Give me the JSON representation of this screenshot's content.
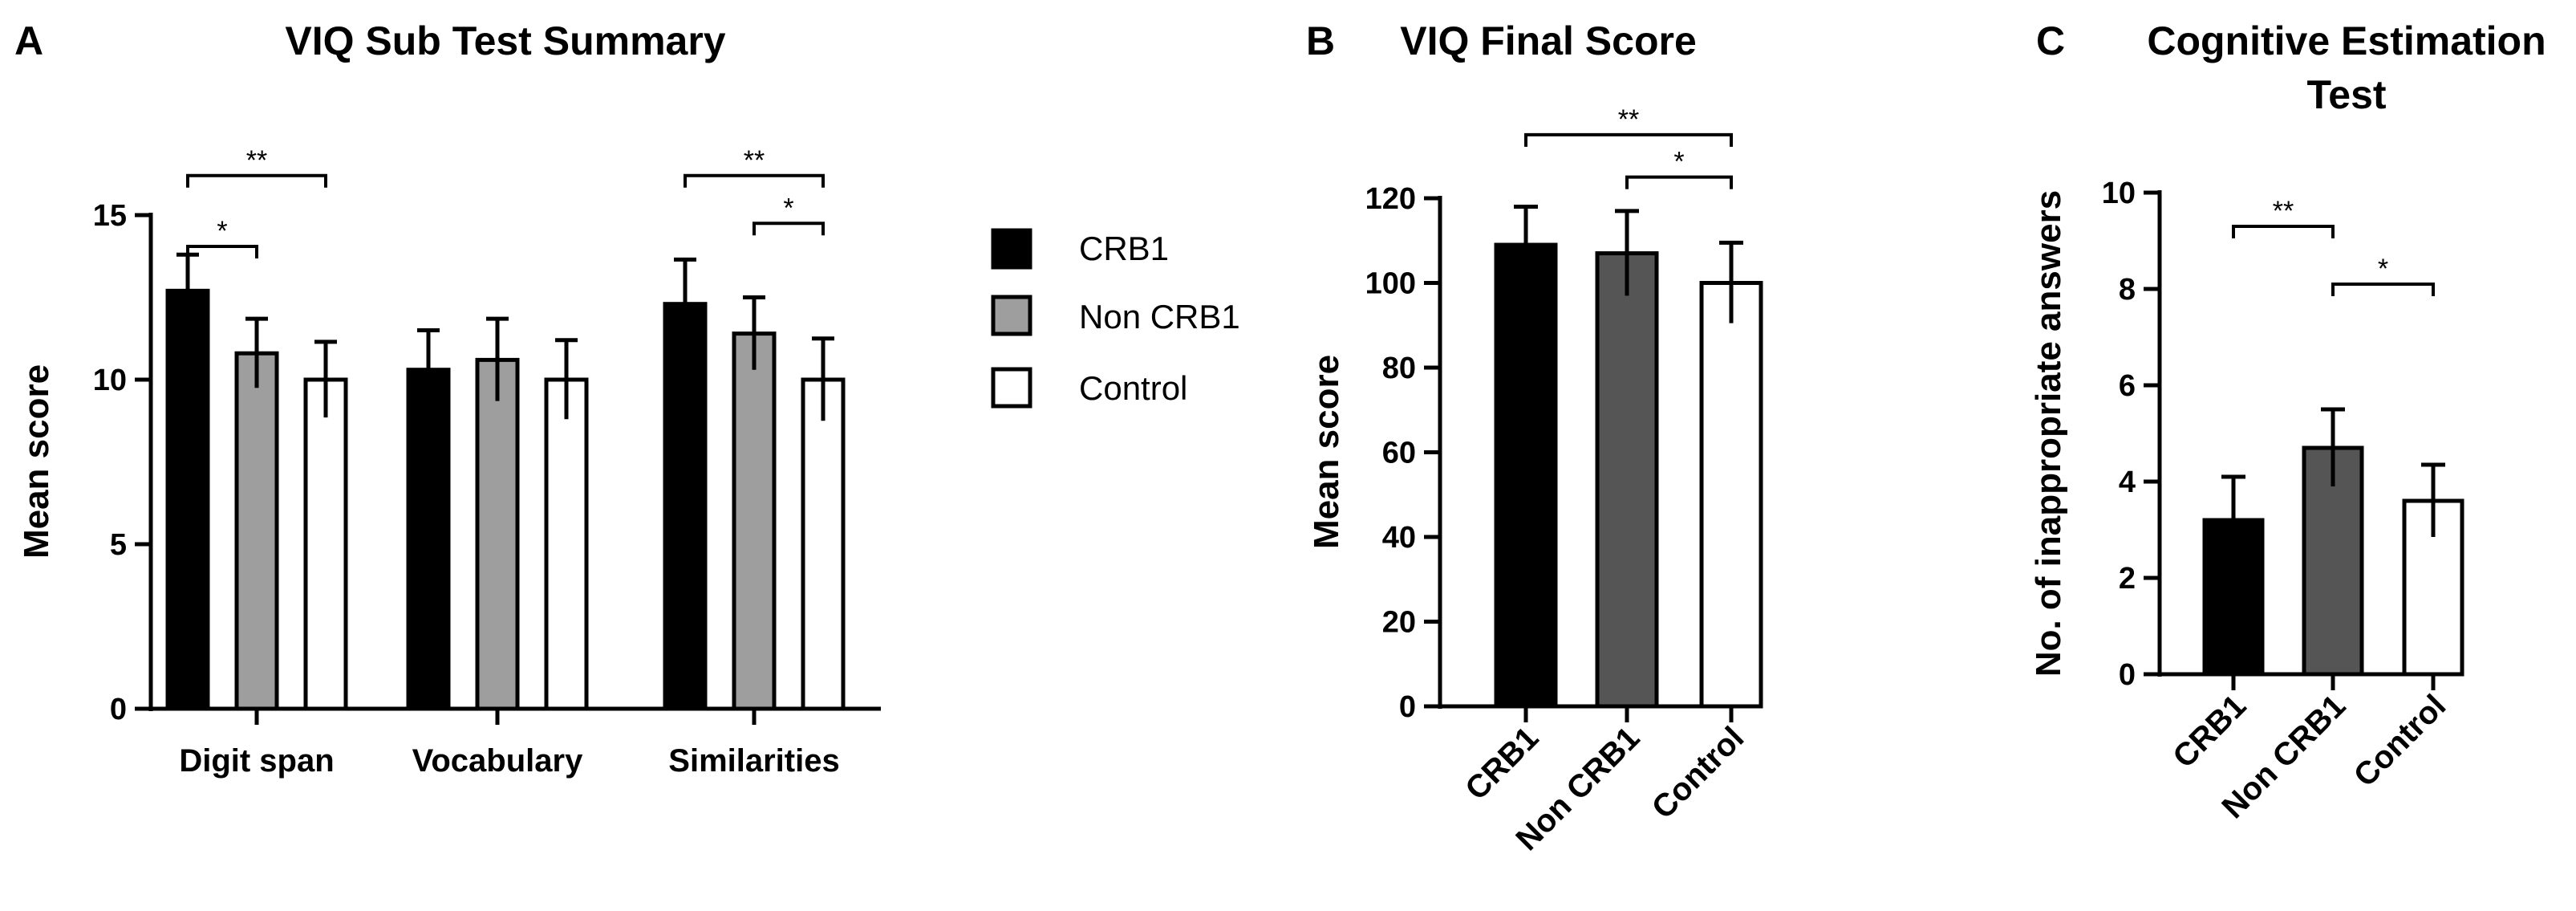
{
  "colors": {
    "CRB1": "#000000",
    "Non CRB1": "#9e9e9e",
    "Non CRB1 dark": "#555555",
    "Control": "#ffffff",
    "axis": "#000000"
  },
  "chart_data": [
    {
      "panel": "A",
      "type": "bar",
      "title": "VIQ Sub Test Summary",
      "xlabel": "",
      "ylabel": "Mean score",
      "ylim": [
        0,
        15
      ],
      "yticks": [
        "0",
        "5",
        "10",
        "15"
      ],
      "categories": [
        "Digit span",
        "Vocabulary",
        "Similarities"
      ],
      "series": [
        {
          "name": "CRB1",
          "color": "#000000",
          "values": [
            12.7,
            10.3,
            12.3
          ],
          "errors": [
            1.1,
            1.2,
            1.35
          ]
        },
        {
          "name": "Non CRB1",
          "color": "#9e9e9e",
          "values": [
            10.8,
            10.6,
            11.4
          ],
          "errors": [
            1.05,
            1.25,
            1.1
          ]
        },
        {
          "name": "Control",
          "color": "#ffffff",
          "values": [
            10.0,
            10.0,
            10.0
          ],
          "errors": [
            1.15,
            1.2,
            1.25
          ]
        }
      ],
      "legend": {
        "position": "right",
        "entries": [
          "CRB1",
          "Non CRB1",
          "Control"
        ]
      },
      "significance": [
        {
          "category": 0,
          "from": 0,
          "to": 1,
          "label": "*",
          "y": 14.05
        },
        {
          "category": 0,
          "from": 0,
          "to": 2,
          "label": "**",
          "y": 16.2
        },
        {
          "category": 2,
          "from": 1,
          "to": 2,
          "label": "*",
          "y": 14.75
        },
        {
          "category": 2,
          "from": 0,
          "to": 2,
          "label": "**",
          "y": 16.2
        }
      ]
    },
    {
      "panel": "B",
      "type": "bar",
      "title": "VIQ Final Score",
      "xlabel": "",
      "ylabel": "Mean score",
      "ylim": [
        0,
        120
      ],
      "yticks": [
        "0",
        "20",
        "40",
        "60",
        "80",
        "100",
        "120"
      ],
      "categories": [
        "CRB1",
        "Non CRB1",
        "Control"
      ],
      "values": [
        109,
        107,
        100
      ],
      "errors": [
        9,
        10,
        9.5
      ],
      "colors": [
        "#000000",
        "#555555",
        "#ffffff"
      ],
      "significance": [
        {
          "from": 1,
          "to": 2,
          "label": "*",
          "y": 125
        },
        {
          "from": 0,
          "to": 2,
          "label": "**",
          "y": 135
        }
      ]
    },
    {
      "panel": "C",
      "type": "bar",
      "title": "Cognitive Estimation",
      "title_line2": "Test",
      "xlabel": "",
      "ylabel": "No. of inappropriate answers",
      "ylim": [
        0,
        10
      ],
      "yticks": [
        "0",
        "2",
        "4",
        "6",
        "8",
        "10"
      ],
      "categories": [
        "CRB1",
        "Non CRB1",
        "Control"
      ],
      "values": [
        3.2,
        4.7,
        3.6
      ],
      "errors": [
        0.9,
        0.8,
        0.75
      ],
      "colors": [
        "#000000",
        "#555555",
        "#ffffff"
      ],
      "significance": [
        {
          "from": 0,
          "to": 1,
          "label": "**",
          "y": 9.3
        },
        {
          "from": 1,
          "to": 2,
          "label": "*",
          "y": 8.1
        }
      ]
    }
  ]
}
